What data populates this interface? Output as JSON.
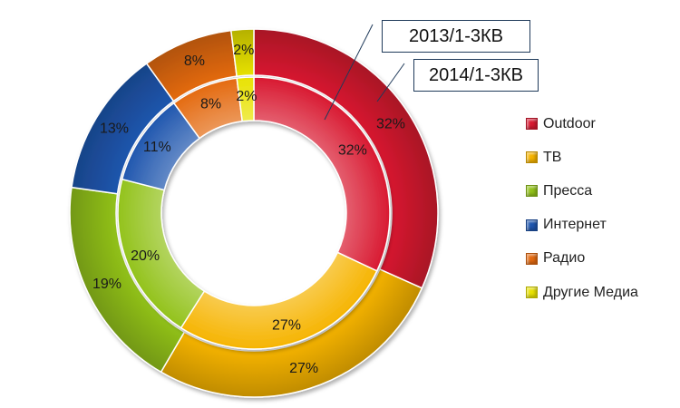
{
  "chart_data": {
    "type": "pie",
    "variant": "nested-donut",
    "categories": [
      "Outdoor",
      "ТВ",
      "Пресса",
      "Интернет",
      "Радио",
      "Другие Медиа"
    ],
    "colors": [
      "#d81830",
      "#f6b400",
      "#92c21a",
      "#1f56ae",
      "#e46a10",
      "#e8e200"
    ],
    "series": [
      {
        "name": "2013/1-3КВ",
        "ring": "outer",
        "values": [
          32,
          27,
          19,
          13,
          8,
          2
        ],
        "labels": [
          "32%",
          "27%",
          "19%",
          "13%",
          "8%",
          "2%"
        ]
      },
      {
        "name": "2014/1-3КВ",
        "ring": "inner",
        "values": [
          32,
          27,
          20,
          11,
          8,
          2
        ],
        "labels": [
          "32%",
          "27%",
          "20%",
          "11%",
          "8%",
          "2%"
        ]
      }
    ],
    "legend": {
      "position": "right"
    }
  }
}
